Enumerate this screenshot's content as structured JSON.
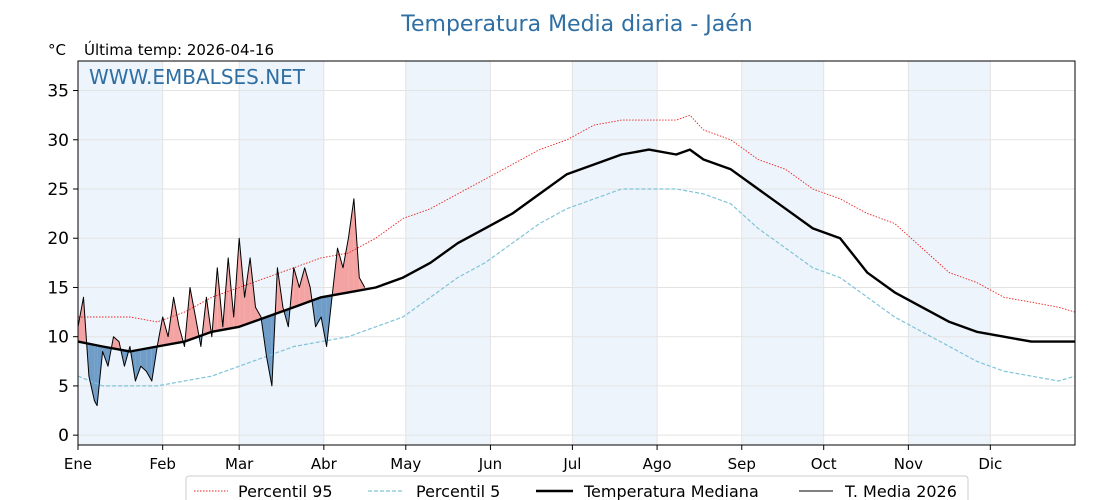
{
  "chart_data": {
    "type": "line",
    "title": "Temperatura Media diaria - Jaén",
    "unit": "°C",
    "subtitle": "Última temp: 2026-04-16",
    "watermark": "WWW.EMBALSES.NET",
    "ylim": [
      -1,
      38
    ],
    "yticks": [
      0,
      5,
      10,
      15,
      20,
      25,
      30,
      35
    ],
    "x_range_days": [
      1,
      366
    ],
    "months": [
      "Ene",
      "Feb",
      "Mar",
      "Abr",
      "May",
      "Jun",
      "Jul",
      "Ago",
      "Sep",
      "Oct",
      "Nov",
      "Dic"
    ],
    "month_start_days": [
      1,
      32,
      60,
      91,
      121,
      152,
      182,
      213,
      244,
      274,
      305,
      335
    ],
    "grid": true,
    "legend_position": "bottom",
    "colors": {
      "p95": "#e8231f",
      "p5": "#7fc4d8",
      "median": "#000000",
      "current": "#000000",
      "above_fill": "#f4a3a3",
      "below_fill": "#6f9dc8",
      "shade": "#eef4fb"
    },
    "series": [
      {
        "name": "Percentil 95",
        "style": "dotted",
        "x": [
          1,
          10,
          20,
          30,
          40,
          50,
          60,
          70,
          80,
          90,
          100,
          110,
          120,
          130,
          140,
          150,
          160,
          170,
          180,
          190,
          200,
          210,
          220,
          225,
          230,
          240,
          250,
          260,
          270,
          280,
          290,
          300,
          310,
          320,
          330,
          340,
          350,
          360,
          366
        ],
        "values": [
          12,
          12,
          12,
          11.5,
          12.5,
          14,
          15,
          16,
          17,
          18,
          18.5,
          20,
          22,
          23,
          24.5,
          26,
          27.5,
          29,
          30,
          31.5,
          32,
          32,
          32,
          32.5,
          31,
          30,
          28,
          27,
          25,
          24,
          22.5,
          21.5,
          19,
          16.5,
          15.5,
          14,
          13.5,
          13,
          12.5
        ]
      },
      {
        "name": "Percentil 5",
        "style": "dashed",
        "x": [
          1,
          10,
          20,
          30,
          40,
          50,
          60,
          70,
          80,
          90,
          100,
          110,
          120,
          130,
          140,
          150,
          160,
          170,
          180,
          190,
          200,
          210,
          220,
          230,
          240,
          250,
          260,
          270,
          280,
          290,
          300,
          310,
          320,
          330,
          340,
          350,
          360,
          366
        ],
        "values": [
          6,
          5,
          5,
          5,
          5.5,
          6,
          7,
          8,
          9,
          9.5,
          10,
          11,
          12,
          14,
          16,
          17.5,
          19.5,
          21.5,
          23,
          24,
          25,
          25,
          25,
          24.5,
          23.5,
          21,
          19,
          17,
          16,
          14,
          12,
          10.5,
          9,
          7.5,
          6.5,
          6,
          5.5,
          6
        ]
      },
      {
        "name": "Temperatura Mediana",
        "style": "thick",
        "x": [
          1,
          10,
          20,
          30,
          40,
          50,
          60,
          70,
          80,
          90,
          100,
          110,
          120,
          130,
          140,
          150,
          160,
          170,
          180,
          190,
          200,
          210,
          220,
          225,
          230,
          240,
          250,
          260,
          270,
          280,
          290,
          300,
          310,
          320,
          330,
          340,
          350,
          360,
          366
        ],
        "values": [
          9.5,
          9,
          8.5,
          9,
          9.5,
          10.5,
          11,
          12,
          13,
          14,
          14.5,
          15,
          16,
          17.5,
          19.5,
          21,
          22.5,
          24.5,
          26.5,
          27.5,
          28.5,
          29,
          28.5,
          29,
          28,
          27,
          25,
          23,
          21,
          20,
          16.5,
          14.5,
          13,
          11.5,
          10.5,
          10,
          9.5,
          9.5,
          9.5
        ]
      },
      {
        "name": "T. Media 2026",
        "style": "thin",
        "x": [
          1,
          3,
          5,
          7,
          8,
          10,
          12,
          14,
          16,
          18,
          20,
          22,
          24,
          26,
          28,
          30,
          32,
          34,
          36,
          38,
          40,
          42,
          44,
          46,
          48,
          50,
          52,
          54,
          56,
          58,
          60,
          62,
          64,
          66,
          68,
          70,
          72,
          74,
          76,
          78,
          80,
          82,
          84,
          86,
          88,
          90,
          92,
          94,
          96,
          98,
          100,
          102,
          104,
          106
        ],
        "values": [
          11,
          14,
          6,
          3.5,
          3,
          8.5,
          7,
          10,
          9.5,
          7,
          9,
          5.5,
          7,
          6.5,
          5.5,
          9,
          12,
          10,
          14,
          11,
          9,
          15,
          12,
          9,
          14,
          10,
          17,
          11,
          18,
          12,
          20,
          14,
          18,
          13,
          12,
          8,
          5,
          17,
          13,
          11,
          17,
          15,
          17,
          15,
          11,
          12,
          9,
          14,
          19,
          17,
          20,
          24,
          16,
          15
        ]
      }
    ]
  }
}
